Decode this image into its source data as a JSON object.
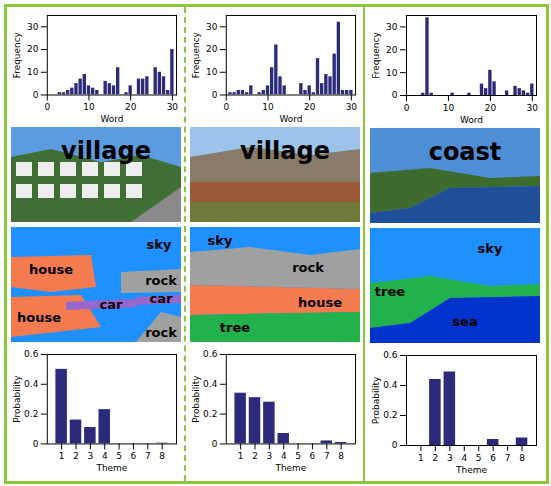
{
  "chart_data": [
    {
      "type": "bar",
      "x_label": "Word",
      "y_label": "Frequency",
      "color": "#2b2a7b",
      "x": [
        1,
        2,
        3,
        4,
        5,
        6,
        7,
        8,
        9,
        10,
        11,
        12,
        13,
        14,
        15,
        16,
        17,
        18,
        19,
        20,
        21,
        22,
        23,
        24,
        25,
        26,
        27,
        28,
        29,
        30
      ],
      "values": [
        0,
        0,
        1,
        1,
        2,
        3,
        5,
        7,
        9,
        4,
        3,
        2,
        0,
        6,
        5,
        4,
        12,
        0,
        1,
        4,
        0,
        7,
        7,
        8,
        0,
        12,
        10,
        8,
        2,
        20
      ],
      "xlim": [
        0,
        31
      ],
      "xticks": [
        0,
        10,
        20,
        30
      ],
      "ylim": [
        0,
        35
      ],
      "yticks": [
        0,
        10,
        20,
        30
      ]
    },
    {
      "type": "bar",
      "x_label": "Word",
      "y_label": "Frequency",
      "color": "#2b2a7b",
      "x": [
        1,
        2,
        3,
        4,
        5,
        6,
        7,
        8,
        9,
        10,
        11,
        12,
        13,
        14,
        15,
        16,
        17,
        18,
        19,
        20,
        21,
        22,
        23,
        24,
        25,
        26,
        27,
        28,
        29,
        30
      ],
      "values": [
        1,
        1,
        2,
        2,
        1,
        4,
        0,
        1,
        2,
        4,
        12,
        22,
        8,
        4,
        0,
        0,
        0,
        5,
        2,
        4,
        1,
        16,
        5,
        9,
        8,
        18,
        32,
        2,
        2,
        2
      ],
      "xlim": [
        0,
        31
      ],
      "xticks": [
        0,
        10,
        20,
        30
      ],
      "ylim": [
        0,
        35
      ],
      "yticks": [
        0,
        10,
        20,
        30
      ]
    },
    {
      "type": "bar",
      "x_label": "Word",
      "y_label": "Frequency",
      "color": "#2b2a7b",
      "x": [
        1,
        2,
        3,
        4,
        5,
        6,
        7,
        8,
        9,
        10,
        11,
        12,
        13,
        14,
        15,
        16,
        17,
        18,
        19,
        20,
        21,
        22,
        23,
        24,
        25,
        26,
        27,
        28,
        29,
        30
      ],
      "values": [
        0,
        0,
        0,
        1,
        34,
        1,
        0,
        0,
        0,
        0,
        1,
        0,
        0,
        0,
        1,
        0,
        0,
        5,
        3,
        11,
        6,
        0,
        0,
        2,
        0,
        4,
        3,
        2,
        1,
        5
      ],
      "xlim": [
        0,
        31
      ],
      "xticks": [
        0,
        10,
        20,
        30
      ],
      "ylim": [
        0,
        35
      ],
      "yticks": [
        0,
        10,
        20,
        30
      ]
    },
    {
      "type": "bar",
      "x_label": "Theme",
      "y_label": "Probability",
      "color": "#2b2a7b",
      "x": [
        1,
        2,
        3,
        4,
        5,
        6,
        7,
        8
      ],
      "values": [
        0.5,
        0.16,
        0.11,
        0.23,
        0,
        0,
        0,
        0.005
      ],
      "xlim": [
        0,
        9
      ],
      "xticks": [
        1,
        2,
        3,
        4,
        5,
        6,
        7,
        8
      ],
      "ylim": [
        0,
        0.6
      ],
      "yticks": [
        0,
        0.2,
        0.4,
        0.6
      ]
    },
    {
      "type": "bar",
      "x_label": "Theme",
      "y_label": "Probability",
      "color": "#2b2a7b",
      "x": [
        1,
        2,
        3,
        4,
        5,
        6,
        7,
        8
      ],
      "values": [
        0.34,
        0.31,
        0.28,
        0.07,
        0,
        0,
        0.02,
        0.01
      ],
      "xlim": [
        0,
        9
      ],
      "xticks": [
        1,
        2,
        3,
        4,
        5,
        6,
        7,
        8
      ],
      "ylim": [
        0,
        0.6
      ],
      "yticks": [
        0,
        0.2,
        0.4,
        0.6
      ]
    },
    {
      "type": "bar",
      "x_label": "Theme",
      "y_label": "Probability",
      "color": "#2b2a7b",
      "x": [
        1,
        2,
        3,
        4,
        5,
        6,
        7,
        8
      ],
      "values": [
        0,
        0.44,
        0.49,
        0,
        0,
        0.04,
        0,
        0.05
      ],
      "xlim": [
        0,
        9
      ],
      "xticks": [
        1,
        2,
        3,
        4,
        5,
        6,
        7,
        8
      ],
      "ylim": [
        0,
        0.6
      ],
      "yticks": [
        0,
        0.2,
        0.4,
        0.6
      ]
    }
  ],
  "images": [
    {
      "label": "village",
      "segments": [
        {
          "label": "sky",
          "color": "#1e90ff"
        },
        {
          "label": "house",
          "color": "#f47a50"
        },
        {
          "label": "house",
          "color": "#f47a50"
        },
        {
          "label": "car",
          "color": "#9966cc"
        },
        {
          "label": "car",
          "color": "#9966cc"
        },
        {
          "label": "rock",
          "color": "#a0a0a0"
        },
        {
          "label": "rock",
          "color": "#a0a0a0"
        }
      ]
    },
    {
      "label": "village",
      "segments": [
        {
          "label": "sky",
          "color": "#1e90ff"
        },
        {
          "label": "rock",
          "color": "#a0a0a0"
        },
        {
          "label": "house",
          "color": "#f47a50"
        },
        {
          "label": "tree",
          "color": "#22b14c"
        }
      ]
    },
    {
      "label": "coast",
      "segments": [
        {
          "label": "sky",
          "color": "#1e90ff"
        },
        {
          "label": "tree",
          "color": "#22b14c"
        },
        {
          "label": "sea",
          "color": "#0033cc"
        }
      ]
    }
  ]
}
